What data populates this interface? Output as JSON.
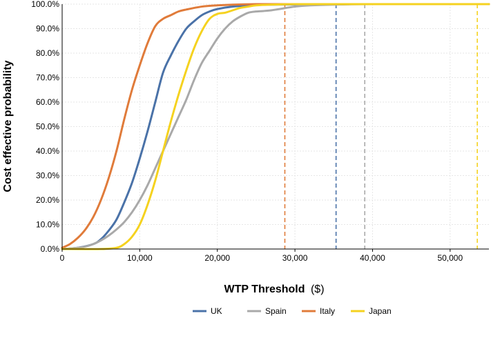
{
  "chart_data": {
    "type": "line",
    "xlabel": "WTP Threshold",
    "xlabel_unit": "($)",
    "ylabel": "Cost effective probability",
    "xlim": [
      0,
      55000
    ],
    "ylim": [
      0,
      1
    ],
    "x_ticks": [
      0,
      10000,
      20000,
      30000,
      40000,
      50000
    ],
    "x_tick_labels": [
      "0",
      "10,000",
      "20,000",
      "30,000",
      "40,000",
      "50,000"
    ],
    "y_ticks": [
      0,
      0.1,
      0.2,
      0.3,
      0.4,
      0.5,
      0.6,
      0.7,
      0.8,
      0.9,
      1.0
    ],
    "y_tick_labels": [
      "0.0%",
      "10.0%",
      "20.0%",
      "30.0%",
      "40.0%",
      "50.0%",
      "60.0%",
      "70.0%",
      "80.0%",
      "90.0%",
      "100.0%"
    ],
    "grid": true,
    "legend_position": "bottom",
    "series": [
      {
        "name": "UK",
        "color": "#4a72a8",
        "threshold": 35300,
        "x": [
          0,
          2000,
          4000,
          5000,
          6000,
          7000,
          8000,
          9000,
          10000,
          11000,
          12000,
          13000,
          14000,
          15000,
          16000,
          17000,
          18000,
          19000,
          20000,
          22000,
          25000,
          30000,
          35000,
          40000,
          55000
        ],
        "y": [
          0.0,
          0.005,
          0.02,
          0.04,
          0.075,
          0.12,
          0.19,
          0.27,
          0.37,
          0.48,
          0.6,
          0.72,
          0.79,
          0.85,
          0.9,
          0.93,
          0.955,
          0.97,
          0.98,
          0.99,
          0.997,
          0.999,
          1.0,
          1.0,
          1.0
        ]
      },
      {
        "name": "Spain",
        "color": "#a9a9a9",
        "threshold": 39000,
        "x": [
          0,
          2000,
          3000,
          4000,
          5000,
          6000,
          7000,
          8000,
          9000,
          10000,
          11000,
          12000,
          13000,
          14000,
          15000,
          16000,
          17000,
          18000,
          19000,
          20000,
          21000,
          22000,
          23000,
          24000,
          25000,
          26000,
          27000,
          28000,
          30000,
          32000,
          35000,
          40000,
          55000
        ],
        "y": [
          0.0,
          0.005,
          0.01,
          0.02,
          0.035,
          0.055,
          0.08,
          0.11,
          0.15,
          0.2,
          0.26,
          0.33,
          0.4,
          0.47,
          0.54,
          0.61,
          0.69,
          0.76,
          0.81,
          0.86,
          0.9,
          0.93,
          0.95,
          0.965,
          0.97,
          0.972,
          0.975,
          0.98,
          0.99,
          0.995,
          0.998,
          1.0,
          1.0
        ]
      },
      {
        "name": "Italy",
        "color": "#e07b3a",
        "threshold": 28700,
        "x": [
          0,
          1000,
          2000,
          3000,
          4000,
          5000,
          6000,
          7000,
          8000,
          9000,
          10000,
          11000,
          12000,
          13000,
          14000,
          15000,
          16000,
          18000,
          20000,
          22000,
          25000,
          30000,
          55000
        ],
        "y": [
          0.005,
          0.02,
          0.045,
          0.08,
          0.13,
          0.2,
          0.29,
          0.4,
          0.53,
          0.65,
          0.75,
          0.84,
          0.91,
          0.94,
          0.955,
          0.97,
          0.978,
          0.99,
          0.995,
          0.998,
          1.0,
          1.0,
          1.0
        ]
      },
      {
        "name": "Japan",
        "color": "#f5d21f",
        "threshold": 53500,
        "x": [
          0,
          5000,
          7000,
          8000,
          9000,
          10000,
          11000,
          12000,
          13000,
          14000,
          15000,
          16000,
          17000,
          18000,
          19000,
          20000,
          21000,
          22000,
          23000,
          24000,
          25000,
          27000,
          30000,
          35000,
          40000,
          55000
        ],
        "y": [
          0.0,
          0.0,
          0.005,
          0.02,
          0.05,
          0.1,
          0.18,
          0.28,
          0.4,
          0.52,
          0.63,
          0.73,
          0.82,
          0.89,
          0.94,
          0.96,
          0.965,
          0.975,
          0.985,
          0.99,
          0.995,
          0.998,
          1.0,
          1.0,
          1.0,
          1.0
        ]
      }
    ]
  }
}
